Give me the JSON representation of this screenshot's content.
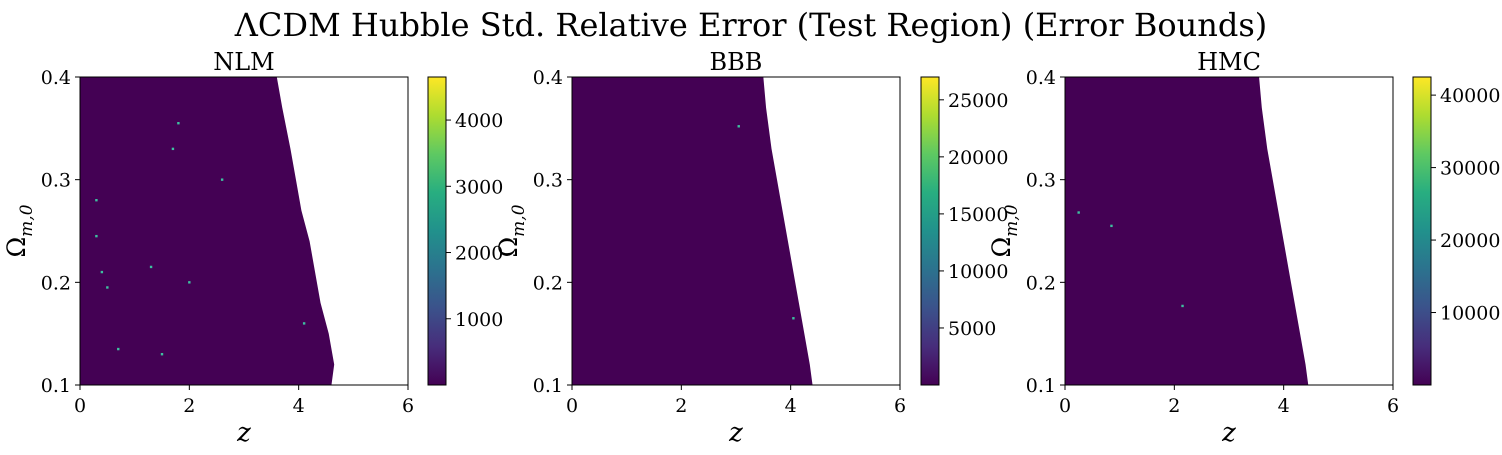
{
  "figure": {
    "title": "ΛCDM Hubble Std. Relative Error (Test Region) (Error Bounds)",
    "fill_color": "#440154",
    "background": "#ffffff"
  },
  "chart_data": [
    {
      "type": "heatmap",
      "title": "NLM",
      "xlabel": "z",
      "ylabel": "Ω",
      "ylabel_sub": "m,0",
      "xlim": [
        0,
        6
      ],
      "ylim": [
        0.1,
        0.4
      ],
      "xticks": [
        "0",
        "2",
        "4",
        "6"
      ],
      "yticks": [
        "0.1",
        "0.2",
        "0.3",
        "0.4"
      ],
      "colorbar": {
        "min": 0,
        "max": 4650,
        "ticks": [
          1000,
          2000,
          3000,
          4000
        ],
        "tick_labels": [
          "1000",
          "2000",
          "3000",
          "4000"
        ]
      },
      "region_boundary": [
        [
          0.4,
          3.6
        ],
        [
          0.37,
          3.7
        ],
        [
          0.33,
          3.85
        ],
        [
          0.3,
          3.95
        ],
        [
          0.27,
          4.05
        ],
        [
          0.24,
          4.2
        ],
        [
          0.21,
          4.3
        ],
        [
          0.18,
          4.4
        ],
        [
          0.15,
          4.55
        ],
        [
          0.12,
          4.65
        ],
        [
          0.1,
          4.6
        ]
      ],
      "hotspots": [
        [
          1.8,
          0.355
        ],
        [
          0.4,
          0.21
        ],
        [
          1.3,
          0.215
        ],
        [
          2.0,
          0.2
        ],
        [
          0.5,
          0.195
        ],
        [
          4.1,
          0.16
        ],
        [
          0.7,
          0.135
        ],
        [
          1.5,
          0.13
        ],
        [
          1.7,
          0.33
        ],
        [
          0.3,
          0.28
        ],
        [
          2.6,
          0.3
        ],
        [
          0.3,
          0.245
        ]
      ]
    },
    {
      "type": "heatmap",
      "title": "BBB",
      "xlabel": "z",
      "ylabel": "Ω",
      "ylabel_sub": "m,0",
      "xlim": [
        0,
        6
      ],
      "ylim": [
        0.1,
        0.4
      ],
      "xticks": [
        "0",
        "2",
        "4",
        "6"
      ],
      "yticks": [
        "0.1",
        "0.2",
        "0.3",
        "0.4"
      ],
      "colorbar": {
        "min": 0,
        "max": 27000,
        "ticks": [
          5000,
          10000,
          15000,
          20000,
          25000
        ],
        "tick_labels": [
          "5000",
          "10000",
          "15000",
          "20000",
          "25000"
        ]
      },
      "region_boundary": [
        [
          0.4,
          3.5
        ],
        [
          0.37,
          3.55
        ],
        [
          0.33,
          3.65
        ],
        [
          0.3,
          3.75
        ],
        [
          0.27,
          3.85
        ],
        [
          0.24,
          3.95
        ],
        [
          0.21,
          4.05
        ],
        [
          0.18,
          4.15
        ],
        [
          0.15,
          4.25
        ],
        [
          0.12,
          4.35
        ],
        [
          0.1,
          4.4
        ]
      ],
      "hotspots": [
        [
          3.05,
          0.352
        ],
        [
          4.05,
          0.165
        ]
      ]
    },
    {
      "type": "heatmap",
      "title": "HMC",
      "xlabel": "z",
      "ylabel": "Ω",
      "ylabel_sub": "m,0",
      "xlim": [
        0,
        6
      ],
      "ylim": [
        0.1,
        0.4
      ],
      "xticks": [
        "0",
        "2",
        "4",
        "6"
      ],
      "yticks": [
        "0.1",
        "0.2",
        "0.3",
        "0.4"
      ],
      "colorbar": {
        "min": 0,
        "max": 42500,
        "ticks": [
          10000,
          20000,
          30000,
          40000
        ],
        "tick_labels": [
          "10000",
          "20000",
          "30000",
          "40000"
        ]
      },
      "region_boundary": [
        [
          0.4,
          3.55
        ],
        [
          0.37,
          3.6
        ],
        [
          0.33,
          3.7
        ],
        [
          0.3,
          3.8
        ],
        [
          0.27,
          3.9
        ],
        [
          0.24,
          4.0
        ],
        [
          0.21,
          4.1
        ],
        [
          0.18,
          4.2
        ],
        [
          0.15,
          4.3
        ],
        [
          0.12,
          4.4
        ],
        [
          0.1,
          4.45
        ]
      ],
      "hotspots": [
        [
          0.85,
          0.255
        ],
        [
          2.15,
          0.177
        ],
        [
          0.25,
          0.268
        ]
      ]
    }
  ]
}
